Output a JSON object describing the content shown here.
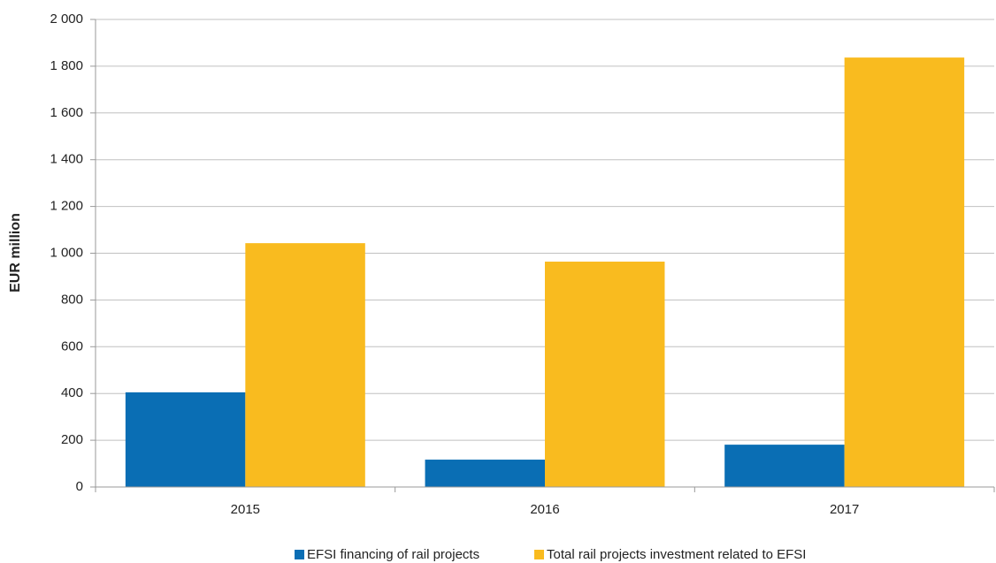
{
  "chart_data": {
    "type": "bar",
    "ylabel": "EUR million",
    "categories": [
      "2015",
      "2016",
      "2017"
    ],
    "series": [
      {
        "name": "EFSI financing of rail projects",
        "color": "#0a6eb4",
        "values": [
          405,
          117,
          181
        ]
      },
      {
        "name": "Total rail projects investment related to EFSI",
        "color": "#f9bb1f",
        "values": [
          1043,
          964,
          1837
        ]
      }
    ],
    "ylim": [
      0,
      2000
    ],
    "yticks": [
      0,
      200,
      400,
      600,
      800,
      {
        "value": 1000,
        "label": "1 000"
      },
      {
        "value": 1200,
        "label": "1 200"
      },
      {
        "value": 1400,
        "label": "1 400"
      },
      {
        "value": 1600,
        "label": "1 600"
      },
      {
        "value": 1800,
        "label": "1 800"
      },
      {
        "value": 2000,
        "label": "2 000"
      }
    ],
    "grid": true,
    "legend": "bottom"
  }
}
